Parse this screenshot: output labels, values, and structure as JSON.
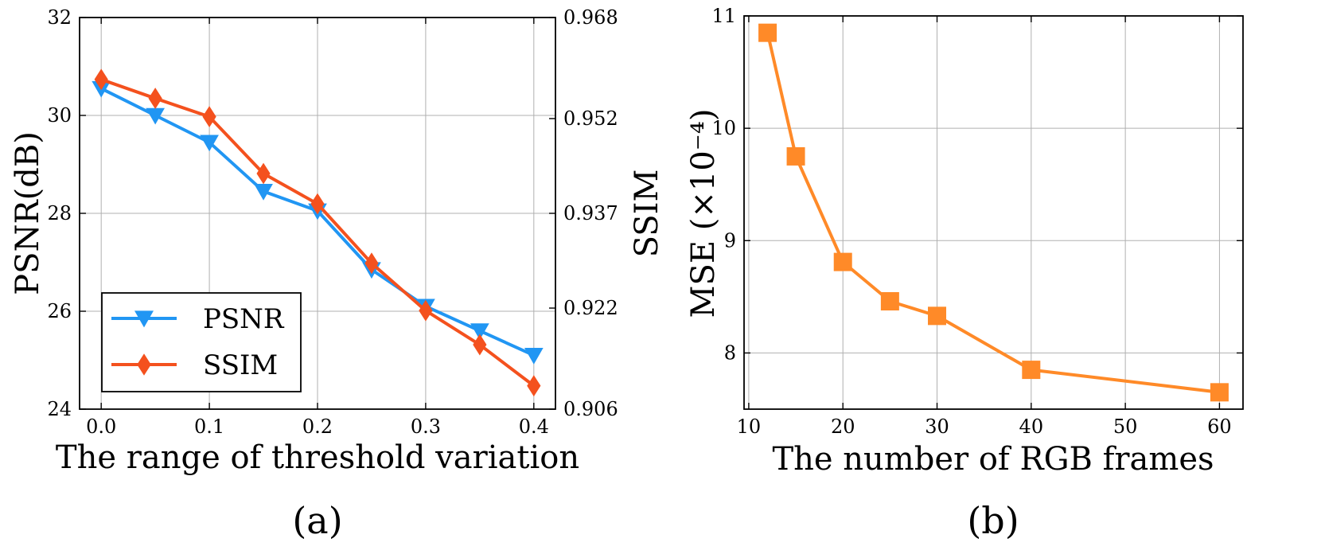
{
  "chart_data": [
    {
      "type": "line",
      "caption": "(a)",
      "xlabel": "The range of threshold variation",
      "ylabel": "PSNR(dB)",
      "y2label": "SSIM",
      "x": [
        0.0,
        0.05,
        0.1,
        0.15,
        0.2,
        0.25,
        0.3,
        0.35,
        0.4
      ],
      "xticks": [
        0.0,
        0.1,
        0.2,
        0.3,
        0.4
      ],
      "xtick_labels": [
        "0.0",
        "0.1",
        "0.2",
        "0.3",
        "0.4"
      ],
      "xlim": [
        -0.02,
        0.42
      ],
      "ylim": [
        24,
        32
      ],
      "yticks": [
        24,
        26,
        28,
        30,
        32
      ],
      "ytick_labels": [
        "24",
        "26",
        "28",
        "30",
        "32"
      ],
      "y2lim": [
        0.906,
        0.968
      ],
      "y2ticks": [
        0.906,
        0.922,
        0.937,
        0.952,
        0.968
      ],
      "y2tick_labels": [
        "0.906",
        "0.922",
        "0.937",
        "0.952",
        "0.968"
      ],
      "grid": true,
      "legend_position": "bottom-left",
      "series": [
        {
          "name": "PSNR",
          "axis": "left",
          "color": "#2196F3",
          "marker": "triangle-down",
          "values": [
            30.55,
            30.0,
            29.45,
            28.45,
            28.05,
            26.85,
            26.1,
            25.6,
            25.1
          ]
        },
        {
          "name": "SSIM",
          "axis": "right",
          "color": "#F4511E",
          "marker": "diamond",
          "values": [
            0.9582,
            0.9552,
            0.9523,
            0.9433,
            0.9385,
            0.9291,
            0.9216,
            0.9162,
            0.9097
          ]
        }
      ]
    },
    {
      "type": "line",
      "caption": "(b)",
      "xlabel": "The number of RGB frames",
      "ylabel": "MSE (×10⁻⁴)",
      "x": [
        12,
        15,
        20,
        25,
        30,
        40,
        60
      ],
      "values": [
        10.85,
        9.75,
        8.81,
        8.46,
        8.33,
        7.85,
        7.65
      ],
      "color": "#FF8A28",
      "marker": "square",
      "xticks": [
        10,
        20,
        30,
        40,
        50,
        60
      ],
      "xtick_labels": [
        "10",
        "20",
        "30",
        "40",
        "50",
        "60"
      ],
      "xlim": [
        9.5,
        62.5
      ],
      "ylim": [
        7.5,
        11
      ],
      "yticks": [
        8,
        9,
        10,
        11
      ],
      "ytick_labels": [
        "8",
        "9",
        "10",
        "11"
      ],
      "grid": true
    }
  ]
}
